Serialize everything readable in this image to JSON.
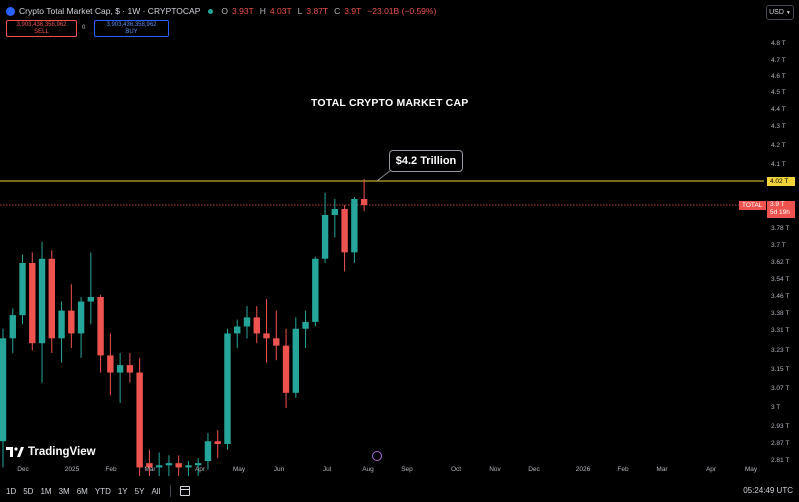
{
  "header": {
    "symbol_title": "Crypto Total Market Cap, $ · 1W · CRYPTOCAP",
    "ohlc": [
      {
        "k": "O",
        "v": "3.93T"
      },
      {
        "k": "H",
        "v": "4.03T"
      },
      {
        "k": "L",
        "v": "3.87T"
      },
      {
        "k": "C",
        "v": "3.9T"
      },
      {
        "k": "",
        "v": "−23.01B (−0.59%)"
      }
    ]
  },
  "order_buttons": {
    "sell_value": "3,903,436,358,962",
    "sell_label": "SELL",
    "spread": "0",
    "buy_value": "3,903,436,358,962",
    "buy_label": "BUY"
  },
  "currency_selector": "USD",
  "annotations": {
    "title": "TOTAL CRYPTO MARKET CAP",
    "callout": "$4.2 Trillion"
  },
  "price_axis": {
    "labels": [
      "4.8 T",
      "4.7 T",
      "4.6 T",
      "4.5 T",
      "4.4 T",
      "4.3 T",
      "4.2 T",
      "4.1 T",
      "3.78 T",
      "3.7 T",
      "3.62 T",
      "3.54 T",
      "3.46 T",
      "3.38 T",
      "3.31 T",
      "3.23 T",
      "3.15 T",
      "3.07 T",
      "3 T",
      "2.93 T",
      "2.87 T",
      "2.81 T"
    ],
    "highlight_yellow": "4.02 T",
    "current_symbol": "TOTAL",
    "current_value": "3.9 T",
    "countdown": "5d 19h"
  },
  "time_axis": {
    "labels": [
      "Dec",
      "2025",
      "Feb",
      "Mar",
      "Apr",
      "May",
      "Jun",
      "Jul",
      "Aug",
      "Sep",
      "Oct",
      "Nov",
      "Dec",
      "2026",
      "Feb",
      "Mar",
      "Apr",
      "May"
    ]
  },
  "bottom_bar": {
    "timeframes": [
      "1D",
      "5D",
      "1M",
      "3M",
      "6M",
      "YTD",
      "1Y",
      "5Y",
      "All"
    ],
    "clock": "05:24:49 UTC"
  },
  "brand": "TradingView",
  "colors": {
    "up": "#26a69a",
    "down": "#ef5350",
    "resistance_line": "#f0d43a",
    "current_price_line": "#ef5350",
    "background": "#000000"
  },
  "chart_data": {
    "type": "candlestick",
    "interval": "1W",
    "unit": "T USD",
    "ylim": [
      2.78,
      4.85
    ],
    "horizontal_lines": [
      4.02,
      3.9
    ],
    "candles": [
      {
        "o": 2.88,
        "h": 3.32,
        "l": 2.78,
        "c": 3.28
      },
      {
        "o": 3.28,
        "h": 3.41,
        "l": 3.22,
        "c": 3.38
      },
      {
        "o": 3.38,
        "h": 3.66,
        "l": 3.34,
        "c": 3.62
      },
      {
        "o": 3.62,
        "h": 3.67,
        "l": 3.23,
        "c": 3.26
      },
      {
        "o": 3.26,
        "h": 3.72,
        "l": 3.1,
        "c": 3.64
      },
      {
        "o": 3.64,
        "h": 3.68,
        "l": 3.22,
        "c": 3.28
      },
      {
        "o": 3.28,
        "h": 3.44,
        "l": 3.18,
        "c": 3.4
      },
      {
        "o": 3.4,
        "h": 3.52,
        "l": 3.24,
        "c": 3.3
      },
      {
        "o": 3.3,
        "h": 3.46,
        "l": 3.2,
        "c": 3.44
      },
      {
        "o": 3.44,
        "h": 3.67,
        "l": 3.34,
        "c": 3.46
      },
      {
        "o": 3.46,
        "h": 3.47,
        "l": 3.14,
        "c": 3.21
      },
      {
        "o": 3.21,
        "h": 3.3,
        "l": 3.05,
        "c": 3.14
      },
      {
        "o": 3.14,
        "h": 3.22,
        "l": 3.02,
        "c": 3.17
      },
      {
        "o": 3.17,
        "h": 3.22,
        "l": 3.1,
        "c": 3.14
      },
      {
        "o": 3.14,
        "h": 3.2,
        "l": 2.74,
        "c": 2.78
      },
      {
        "o": 2.8,
        "h": 2.85,
        "l": 2.74,
        "c": 2.78
      },
      {
        "o": 2.78,
        "h": 2.84,
        "l": 2.74,
        "c": 2.79
      },
      {
        "o": 2.79,
        "h": 2.83,
        "l": 2.74,
        "c": 2.8
      },
      {
        "o": 2.8,
        "h": 2.83,
        "l": 2.74,
        "c": 2.78
      },
      {
        "o": 2.78,
        "h": 2.81,
        "l": 2.74,
        "c": 2.79
      },
      {
        "o": 2.79,
        "h": 2.82,
        "l": 2.74,
        "c": 2.8
      },
      {
        "o": 2.81,
        "h": 2.91,
        "l": 2.77,
        "c": 2.88
      },
      {
        "o": 2.88,
        "h": 2.92,
        "l": 2.82,
        "c": 2.87
      },
      {
        "o": 2.87,
        "h": 3.32,
        "l": 2.85,
        "c": 3.3
      },
      {
        "o": 3.3,
        "h": 3.36,
        "l": 3.24,
        "c": 3.33
      },
      {
        "o": 3.33,
        "h": 3.42,
        "l": 3.28,
        "c": 3.37
      },
      {
        "o": 3.37,
        "h": 3.42,
        "l": 3.26,
        "c": 3.3
      },
      {
        "o": 3.3,
        "h": 3.45,
        "l": 3.18,
        "c": 3.28
      },
      {
        "o": 3.28,
        "h": 3.4,
        "l": 3.19,
        "c": 3.25
      },
      {
        "o": 3.25,
        "h": 3.32,
        "l": 3.0,
        "c": 3.06
      },
      {
        "o": 3.06,
        "h": 3.37,
        "l": 3.04,
        "c": 3.32
      },
      {
        "o": 3.32,
        "h": 3.4,
        "l": 3.24,
        "c": 3.35
      },
      {
        "o": 3.35,
        "h": 3.65,
        "l": 3.33,
        "c": 3.64
      },
      {
        "o": 3.64,
        "h": 3.96,
        "l": 3.62,
        "c": 3.85
      },
      {
        "o": 3.85,
        "h": 3.93,
        "l": 3.74,
        "c": 3.88
      },
      {
        "o": 3.88,
        "h": 3.9,
        "l": 3.58,
        "c": 3.67
      },
      {
        "o": 3.67,
        "h": 3.94,
        "l": 3.62,
        "c": 3.93
      },
      {
        "o": 3.93,
        "h": 4.03,
        "l": 3.87,
        "c": 3.9
      }
    ]
  }
}
